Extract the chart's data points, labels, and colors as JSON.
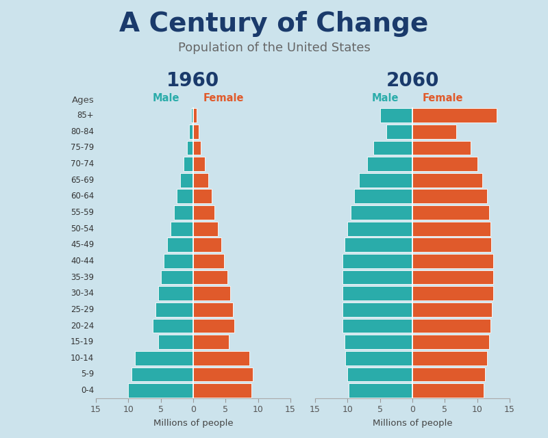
{
  "title": "A Century of Change",
  "subtitle": "Population of the United States",
  "title_color": "#1a3a6b",
  "subtitle_color": "#666666",
  "age_groups": [
    "85+",
    "80-84",
    "75-79",
    "70-74",
    "65-69",
    "60-64",
    "55-59",
    "50-54",
    "45-49",
    "40-44",
    "35-39",
    "30-34",
    "25-29",
    "20-24",
    "15-19",
    "10-14",
    "5-9",
    "0-4"
  ],
  "male_color": "#2aacaa",
  "female_color": "#e05a2b",
  "bg_color": "#cce3ec",
  "year1": "1960",
  "year2": "2060",
  "male_label": "Male",
  "female_label": "Female",
  "xlabel": "Millions of people",
  "ages_label": "Ages",
  "1960_male": [
    0.3,
    0.6,
    1.0,
    1.5,
    2.0,
    2.5,
    3.0,
    3.5,
    4.0,
    4.5,
    5.0,
    5.4,
    5.8,
    6.2,
    5.4,
    9.0,
    9.5,
    10.0
  ],
  "1960_female": [
    0.5,
    0.8,
    1.2,
    1.8,
    2.3,
    2.8,
    3.3,
    3.8,
    4.3,
    4.8,
    5.3,
    5.7,
    6.1,
    6.3,
    5.5,
    8.7,
    9.2,
    9.0
  ],
  "2060_male": [
    5.0,
    4.0,
    6.0,
    7.0,
    8.2,
    9.0,
    9.5,
    10.0,
    10.5,
    10.8,
    10.8,
    10.8,
    10.8,
    10.8,
    10.5,
    10.3,
    10.0,
    9.8
  ],
  "2060_female": [
    13.0,
    6.8,
    9.0,
    10.0,
    10.8,
    11.5,
    11.8,
    12.0,
    12.2,
    12.5,
    12.5,
    12.5,
    12.3,
    12.0,
    11.8,
    11.5,
    11.2,
    11.0
  ],
  "xlim": 15,
  "bar_height": 0.88,
  "linewidth": 0.6,
  "bar_edge_color": "white",
  "xticks": [
    -15,
    -10,
    -5,
    0,
    5,
    10,
    15
  ],
  "xticklabels": [
    "15",
    "10",
    "5",
    "0",
    "5",
    "10",
    "15"
  ]
}
